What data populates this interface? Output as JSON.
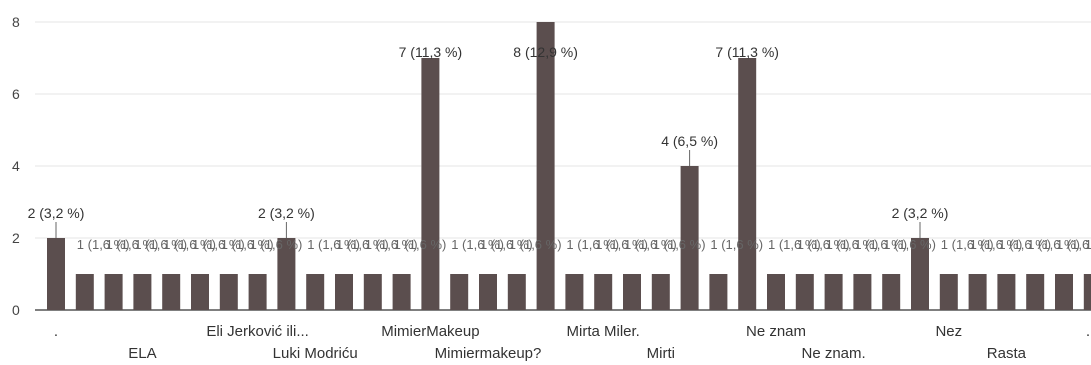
{
  "chart_data": {
    "type": "bar",
    "ylim": [
      0,
      8
    ],
    "yticks": [
      0,
      2,
      4,
      6,
      8
    ],
    "grid": true,
    "bar_color": "#5b4e4e",
    "values": [
      2,
      1,
      1,
      1,
      1,
      1,
      1,
      1,
      2,
      1,
      1,
      1,
      1,
      7,
      1,
      1,
      1,
      8,
      1,
      1,
      1,
      1,
      4,
      1,
      7,
      1,
      1,
      1,
      1,
      1,
      2,
      1,
      1,
      1,
      1,
      1,
      1
    ],
    "data_labels": [
      {
        "index": 0,
        "text": "2 (3,2 %)"
      },
      {
        "index": 8,
        "text": "2 (3,2 %)"
      },
      {
        "index": 13,
        "text": "7 (11,3 %)"
      },
      {
        "index": 17,
        "text": "8 (12,9 %)"
      },
      {
        "index": 22,
        "text": "4 (6,5 %)"
      },
      {
        "index": 24,
        "text": "7 (11,3 %)"
      },
      {
        "index": 30,
        "text": "2 (3,2 %)"
      }
    ],
    "small_label": "1 (1,6 %)",
    "x_labels": [
      {
        "index": 0,
        "text": ".",
        "row": 1
      },
      {
        "index": 3,
        "text": "ELA",
        "row": 2
      },
      {
        "index": 7,
        "text": "Eli Jerković ili...",
        "row": 1
      },
      {
        "index": 9,
        "text": "Luki Modriću",
        "row": 2
      },
      {
        "index": 13,
        "text": "MimierMakeup",
        "row": 1
      },
      {
        "index": 15,
        "text": "Mimiermakeup?",
        "row": 2
      },
      {
        "index": 19,
        "text": "Mirta Miler.",
        "row": 1
      },
      {
        "index": 21,
        "text": "Mirti",
        "row": 2
      },
      {
        "index": 25,
        "text": "Ne znam",
        "row": 1
      },
      {
        "index": 27,
        "text": "Ne znam.",
        "row": 2
      },
      {
        "index": 31,
        "text": "Nez",
        "row": 1
      },
      {
        "index": 33,
        "text": "Rasta",
        "row": 2
      },
      {
        "index": 36,
        "text": "…",
        "row": 1
      }
    ]
  }
}
